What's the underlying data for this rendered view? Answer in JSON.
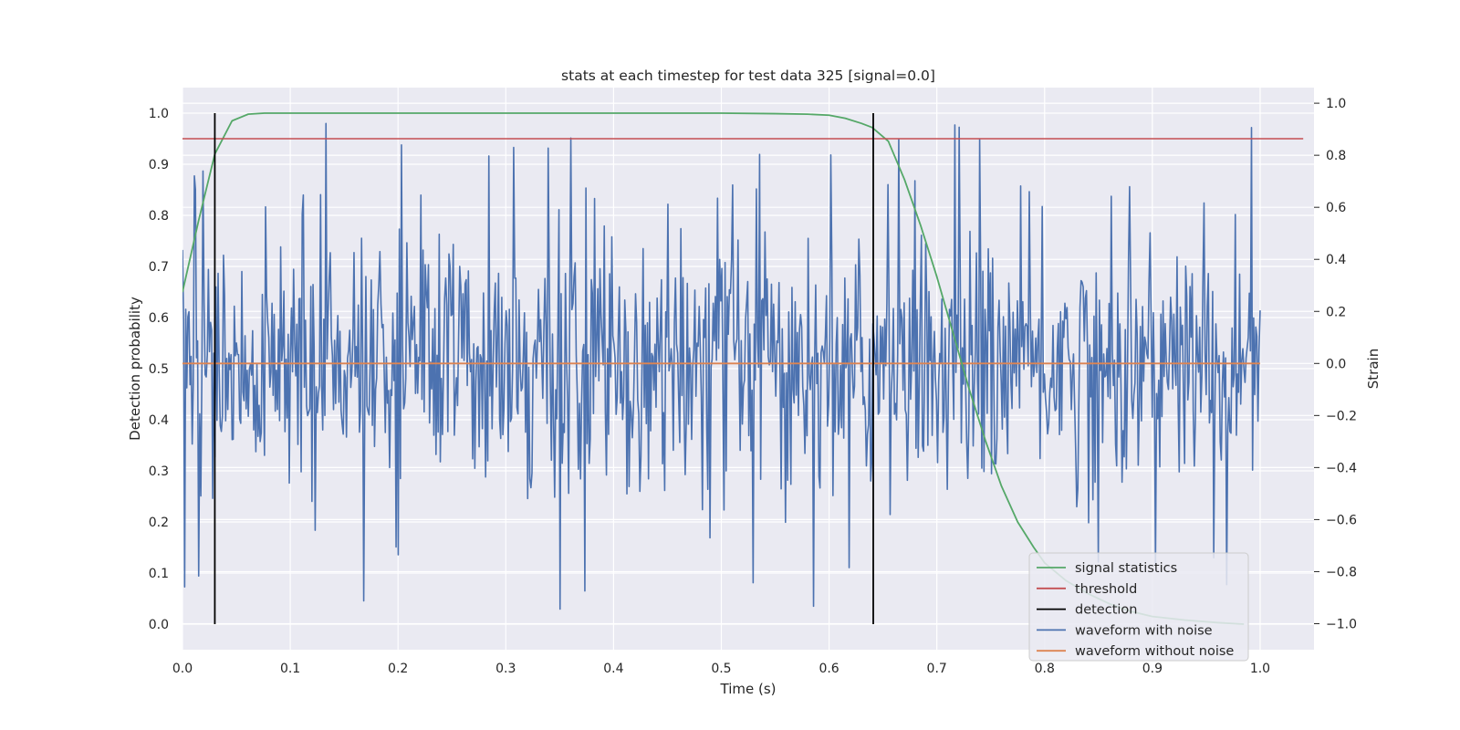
{
  "chart_data": {
    "type": "line",
    "title": "stats at each timestep for test data 325 [signal=0.0]",
    "xlabel": "Time (s)",
    "ylabel": "Detection probability",
    "ylabel_right": "Strain",
    "xlim": [
      0.0,
      1.05
    ],
    "ylim": [
      -0.05,
      1.05
    ],
    "ylim_right": [
      -1.1,
      1.06
    ],
    "x_ticks": [
      "0.0",
      "0.1",
      "0.2",
      "0.3",
      "0.4",
      "0.5",
      "0.6",
      "0.7",
      "0.8",
      "0.9",
      "1.0"
    ],
    "y_ticks": [
      "0.0",
      "0.1",
      "0.2",
      "0.3",
      "0.4",
      "0.5",
      "0.6",
      "0.7",
      "0.8",
      "0.9",
      "1.0"
    ],
    "y_ticks_right": [
      "−1.0",
      "−0.8",
      "−0.6",
      "−0.4",
      "−0.2",
      "0.0",
      "0.2",
      "0.4",
      "0.6",
      "0.8",
      "1.0"
    ],
    "grid": true,
    "legend_position": "lower-right",
    "colors": {
      "signal_statistics": "#55a868",
      "threshold": "#c44e52",
      "detection": "#000000",
      "waveform_with_noise": "#4c72b0",
      "waveform_without_noise": "#dd8452",
      "plot_background": "#eaeaf2",
      "grid": "#ffffff"
    },
    "series": [
      {
        "name": "signal statistics",
        "axis": "left",
        "x": [
          0.0,
          0.015,
          0.03,
          0.046,
          0.061,
          0.076,
          0.1,
          0.2,
          0.3,
          0.4,
          0.5,
          0.55,
          0.58,
          0.6,
          0.615,
          0.63,
          0.64,
          0.655,
          0.67,
          0.685,
          0.7,
          0.715,
          0.73,
          0.745,
          0.76,
          0.775,
          0.79,
          0.8,
          0.82,
          0.84,
          0.86,
          0.88,
          0.9,
          0.93,
          0.96,
          0.985
        ],
        "y": [
          0.65,
          0.79,
          0.92,
          0.985,
          0.998,
          1.0,
          1.0,
          1.0,
          1.0,
          1.0,
          1.0,
          0.999,
          0.998,
          0.996,
          0.99,
          0.98,
          0.972,
          0.945,
          0.87,
          0.78,
          0.68,
          0.57,
          0.46,
          0.36,
          0.27,
          0.2,
          0.15,
          0.12,
          0.085,
          0.06,
          0.04,
          0.025,
          0.015,
          0.008,
          0.003,
          0.0
        ]
      },
      {
        "name": "threshold",
        "axis": "left",
        "x": [
          0.0,
          1.04
        ],
        "y": [
          0.95,
          0.95
        ]
      },
      {
        "name": "detection",
        "axis": "left",
        "segments": [
          {
            "x": 0.03,
            "y": [
              0.0,
              1.0
            ]
          },
          {
            "x": 0.641,
            "y": [
              0.0,
              1.0
            ]
          }
        ]
      },
      {
        "name": "waveform with noise",
        "axis": "right",
        "samples": 1000,
        "x_range": [
          0.0,
          1.0
        ],
        "y_range": [
          -1.0,
          1.0
        ],
        "noise_profile": "random noise spanning roughly -0.4 to 0.4 with spikes near ±0.9"
      },
      {
        "name": "waveform without noise",
        "axis": "right",
        "x": [
          0.0,
          1.0
        ],
        "y": [
          0.0,
          0.0
        ]
      }
    ]
  }
}
